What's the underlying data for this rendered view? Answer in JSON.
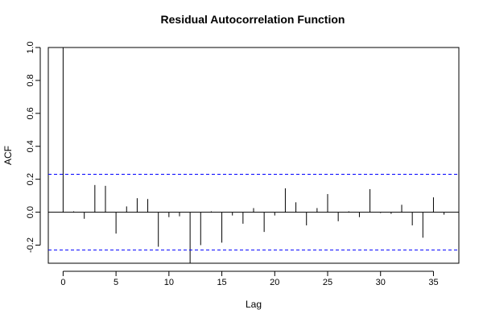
{
  "chart_data": {
    "type": "bar",
    "title": "Residual Autocorrelation Function",
    "xlabel": "Lag",
    "ylabel": "ACF",
    "xlim": [
      -1.4,
      37.4
    ],
    "ylim": [
      -0.31,
      1.0
    ],
    "x_ticks": [
      0,
      5,
      10,
      15,
      20,
      25,
      30,
      35
    ],
    "x_tick_labels": [
      "0",
      "5",
      "10",
      "15",
      "20",
      "25",
      "30",
      "35"
    ],
    "y_ticks": [
      -0.2,
      0.0,
      0.2,
      0.4,
      0.6,
      0.8,
      1.0
    ],
    "y_tick_labels": [
      "-0.2",
      "0.0",
      "0.2",
      "0.4",
      "0.6",
      "0.8",
      "1.0"
    ],
    "confidence_bound": 0.23,
    "colors": {
      "bars": "#000000",
      "confidence": "#0000ff",
      "zero_line": "#000000"
    },
    "lags": [
      0,
      1,
      2,
      3,
      4,
      5,
      6,
      7,
      8,
      9,
      10,
      11,
      12,
      13,
      14,
      15,
      16,
      17,
      18,
      19,
      20,
      21,
      22,
      23,
      24,
      25,
      26,
      27,
      28,
      29,
      30,
      31,
      32,
      33,
      34,
      35,
      36
    ],
    "values": [
      1.0,
      0.005,
      -0.04,
      0.165,
      0.16,
      -0.13,
      0.035,
      0.085,
      0.08,
      -0.21,
      -0.03,
      -0.025,
      -0.31,
      -0.2,
      0.005,
      -0.185,
      -0.02,
      -0.07,
      0.025,
      -0.12,
      -0.02,
      0.145,
      0.06,
      -0.08,
      0.025,
      0.11,
      -0.055,
      0.005,
      -0.03,
      0.14,
      -0.005,
      -0.01,
      0.045,
      -0.08,
      -0.155,
      0.09,
      -0.015
    ]
  }
}
